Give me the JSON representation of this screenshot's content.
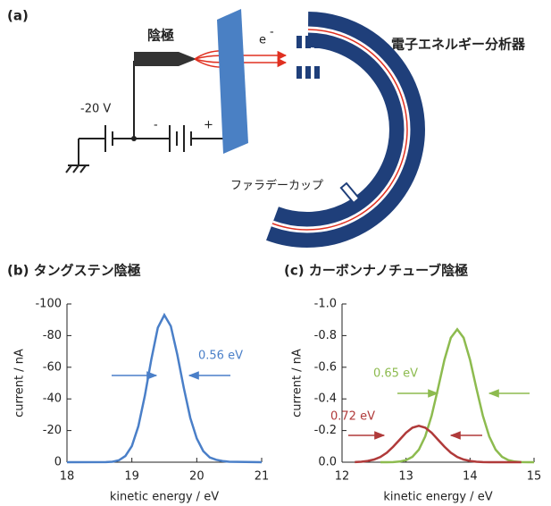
{
  "diagram": {
    "panel": "(a)",
    "cathode": "陰極",
    "voltage": "-20 V",
    "electron": "e",
    "electron_sign": "-",
    "analyzer": "電子エネルギー分析器",
    "faraday_cup": "ファラデーカップ",
    "battery_minus": "-",
    "battery_plus": "+"
  },
  "chart_data": [
    {
      "type": "line",
      "title": "(b) タングステン陰極",
      "x_label": "kinetic energy / eV",
      "y_label": "current / nA",
      "xlim": [
        18,
        21
      ],
      "xticks": [
        18,
        19,
        20,
        21
      ],
      "ylim": [
        0,
        -100
      ],
      "yticks": [
        -100,
        -80,
        -60,
        -40,
        -20,
        0
      ],
      "series": [
        {
          "color": "#4a7fc8",
          "x": [
            18,
            18.6,
            18.7,
            18.8,
            18.9,
            19.0,
            19.1,
            19.2,
            19.3,
            19.4,
            19.5,
            19.6,
            19.7,
            19.8,
            19.9,
            20.0,
            20.1,
            20.2,
            20.3,
            20.4,
            20.5,
            21
          ],
          "values": [
            0,
            -0.1,
            -0.3,
            -1.2,
            -3.9,
            -10.2,
            -22.7,
            -42,
            -65,
            -85,
            -93,
            -86,
            -68,
            -47,
            -28,
            -15,
            -7,
            -3,
            -1.5,
            -0.7,
            -0.3,
            0
          ]
        }
      ],
      "annotations": [
        {
          "text": "0.56 eV",
          "color": "#4a7fc8"
        }
      ]
    },
    {
      "type": "line",
      "title": "(c) カーボンナノチューブ陰極",
      "x_label": "kinetic energy / eV",
      "y_label": "current / nA",
      "xlim": [
        12,
        15
      ],
      "xticks": [
        12,
        13,
        14,
        15
      ],
      "ylim": [
        0,
        -1
      ],
      "yticks": [
        {
          "value": -1,
          "label": "-1.0"
        },
        -0.8,
        -0.6,
        -0.4,
        -0.2,
        {
          "value": 0,
          "label": "0.0"
        }
      ],
      "series": [
        {
          "color": "#8dbb4f",
          "x": [
            12.6,
            12.7,
            12.8,
            12.9,
            13.0,
            13.1,
            13.2,
            13.3,
            13.4,
            13.5,
            13.6,
            13.7,
            13.8,
            13.9,
            14.0,
            14.1,
            14.2,
            14.3,
            14.4,
            14.5,
            14.6,
            14.7,
            14.8,
            14.9,
            15.0
          ],
          "values": [
            0,
            0,
            -0.001,
            -0.004,
            -0.013,
            -0.034,
            -0.079,
            -0.163,
            -0.294,
            -0.466,
            -0.647,
            -0.786,
            -0.84,
            -0.786,
            -0.647,
            -0.466,
            -0.294,
            -0.163,
            -0.079,
            -0.034,
            -0.013,
            -0.004,
            -0.001,
            0,
            0
          ]
        },
        {
          "color": "#b03a3a",
          "x": [
            12.2,
            12.3,
            12.4,
            12.5,
            12.6,
            12.7,
            12.8,
            12.9,
            13.0,
            13.1,
            13.2,
            13.3,
            13.4,
            13.5,
            13.6,
            13.7,
            13.8,
            13.9,
            14.0,
            14.1,
            14.2,
            14.3,
            14.4,
            14.5,
            14.6,
            14.7,
            14.8
          ],
          "values": [
            -0.001,
            -0.003,
            -0.008,
            -0.017,
            -0.033,
            -0.06,
            -0.098,
            -0.142,
            -0.186,
            -0.218,
            -0.23,
            -0.218,
            -0.186,
            -0.142,
            -0.098,
            -0.06,
            -0.033,
            -0.017,
            -0.008,
            -0.003,
            -0.001,
            0,
            0,
            0,
            0,
            0,
            0
          ]
        }
      ],
      "annotations": [
        {
          "text": "0.65 eV",
          "color": "#8dbb4f"
        },
        {
          "text": "0.72 eV",
          "color": "#b03a3a"
        }
      ]
    }
  ]
}
